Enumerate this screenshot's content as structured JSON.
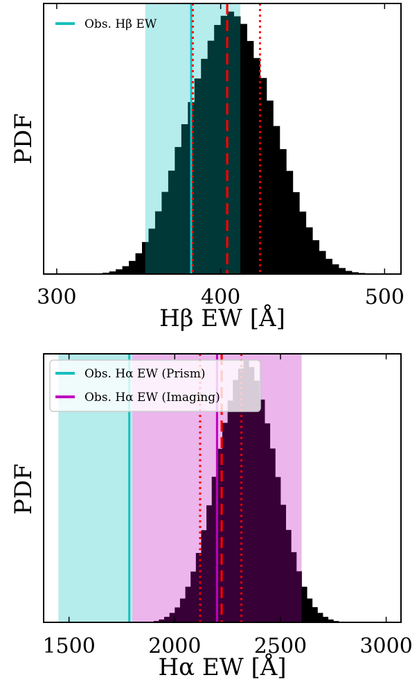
{
  "chart_data": [
    {
      "type": "bar",
      "ylabel": "PDF",
      "xlabel": "Hβ EW [Å]",
      "xlim": [
        292,
        510
      ],
      "xticks": [
        300,
        400,
        500
      ],
      "yticks": [],
      "grid": false,
      "histogram": {
        "bin_width": 4,
        "bin_start": 324,
        "values": [
          0.002,
          0.005,
          0.01,
          0.018,
          0.03,
          0.05,
          0.079,
          0.122,
          0.173,
          0.239,
          0.313,
          0.394,
          0.484,
          0.571,
          0.655,
          0.745,
          0.82,
          0.889,
          0.949,
          0.984,
          1.0,
          0.982,
          0.953,
          0.888,
          0.823,
          0.747,
          0.661,
          0.564,
          0.476,
          0.393,
          0.312,
          0.238,
          0.178,
          0.129,
          0.088,
          0.058,
          0.037,
          0.023,
          0.012,
          0.007,
          0.004,
          0.002
        ],
        "color": "#000000"
      },
      "observed_band": {
        "range": [
          354,
          412
        ],
        "color": "#00bfbf",
        "opacity": 0.29
      },
      "observed_line": {
        "value": 382,
        "color": "#17bfbf"
      },
      "median_line": {
        "value": 404,
        "color": "#ff0000",
        "style": "dashed"
      },
      "percentile_lines": {
        "values": [
          383,
          424
        ],
        "color": "#ff0000",
        "style": "dotted"
      },
      "legend": {
        "location": "upper-left",
        "entries": [
          {
            "label": "Obs. Hβ EW",
            "color": "#17bfbf"
          }
        ]
      }
    },
    {
      "type": "bar",
      "ylabel": "PDF",
      "xlabel": "Hα EW [Å]",
      "xlim": [
        1380,
        3070
      ],
      "xticks": [
        1500,
        2000,
        2500,
        3000
      ],
      "yticks": [],
      "grid": false,
      "histogram": {
        "bin_width": 25,
        "bin_start": 1900,
        "values": [
          0.005,
          0.011,
          0.021,
          0.036,
          0.057,
          0.091,
          0.136,
          0.194,
          0.265,
          0.352,
          0.447,
          0.556,
          0.663,
          0.762,
          0.847,
          0.926,
          0.969,
          1.0,
          0.975,
          0.923,
          0.851,
          0.76,
          0.664,
          0.555,
          0.449,
          0.353,
          0.268,
          0.195,
          0.136,
          0.091,
          0.058,
          0.036,
          0.021,
          0.011,
          0.005
        ],
        "color": "#000000"
      },
      "observed_band_prism": {
        "range": [
          1450,
          1800
        ],
        "color": "#00bfbf",
        "opacity": 0.29
      },
      "observed_band_imaging": {
        "range": [
          1800,
          2600
        ],
        "color": "#bf00bf",
        "opacity": 0.29
      },
      "observed_line_prism": {
        "value": 1785,
        "color": "#17bfbf"
      },
      "observed_line_imaging": {
        "value": 2200,
        "color": "#bf00bf"
      },
      "median_line": {
        "value": 2222,
        "color": "#ff0000",
        "style": "dashed"
      },
      "percentile_lines": {
        "values": [
          2120,
          2315
        ],
        "color": "#ff0000",
        "style": "dotted"
      },
      "legend": {
        "location": "upper-left",
        "entries": [
          {
            "label": "Obs. Hα EW (Prism)",
            "color": "#17bfbf"
          },
          {
            "label": "Obs. Hα EW (Imaging)",
            "color": "#bf00bf"
          }
        ]
      }
    }
  ]
}
